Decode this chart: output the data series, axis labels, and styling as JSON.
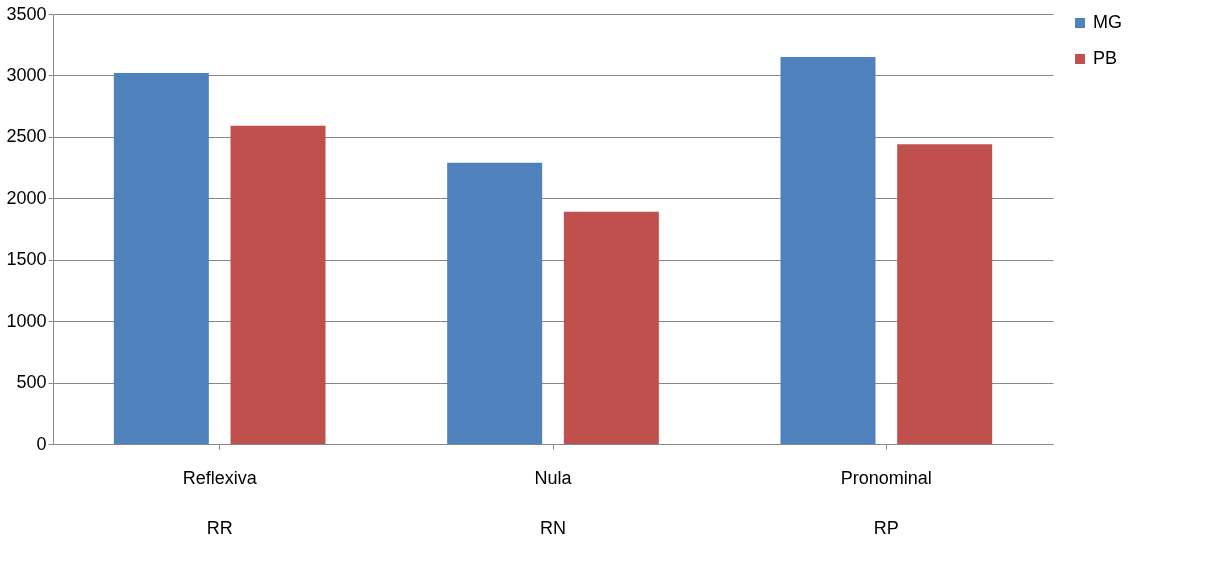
{
  "chart_data": {
    "type": "bar",
    "categories": [
      "Reflexiva\nRR",
      "Nula\nRN",
      "Pronominal\nRP"
    ],
    "series": [
      {
        "name": "MG",
        "color": "#4f81bd",
        "values": [
          3020,
          2290,
          3150
        ]
      },
      {
        "name": "PB",
        "color": "#c0504d",
        "values": [
          2590,
          1890,
          2440
        ]
      }
    ],
    "ylim": [
      0,
      3500
    ],
    "yticks": [
      0,
      500,
      1000,
      1500,
      2000,
      2500,
      3000,
      3500
    ],
    "grid": "y",
    "legend": "right"
  }
}
